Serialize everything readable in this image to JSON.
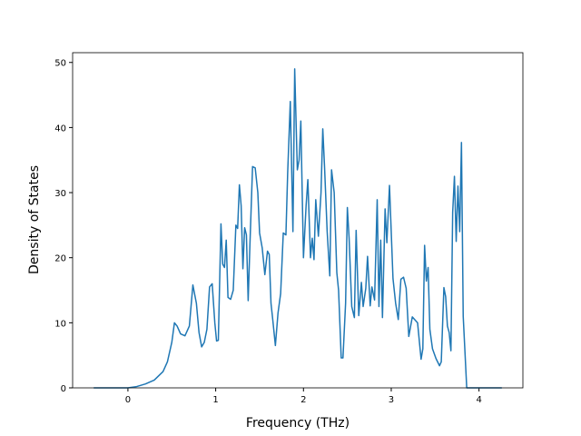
{
  "chart_data": {
    "type": "line",
    "x_label": "Frequency (THz)",
    "y_label": "Density of States",
    "xlim": [
      -0.63,
      4.5
    ],
    "ylim": [
      0,
      51.5
    ],
    "xticks": [
      0,
      1,
      2,
      3,
      4
    ],
    "yticks": [
      0,
      10,
      20,
      30,
      40,
      50
    ],
    "grid": false,
    "series": [
      {
        "color": "#1f77b4",
        "x": [
          -0.39,
          0,
          0.1,
          0.2,
          0.3,
          0.4,
          0.45,
          0.5,
          0.53,
          0.56,
          0.6,
          0.65,
          0.7,
          0.74,
          0.78,
          0.81,
          0.84,
          0.87,
          0.9,
          0.93,
          0.96,
          0.99,
          1.01,
          1.03,
          1.06,
          1.08,
          1.1,
          1.12,
          1.14,
          1.17,
          1.2,
          1.23,
          1.25,
          1.27,
          1.29,
          1.31,
          1.33,
          1.35,
          1.37,
          1.39,
          1.42,
          1.45,
          1.48,
          1.5,
          1.53,
          1.56,
          1.59,
          1.61,
          1.63,
          1.65,
          1.68,
          1.71,
          1.74,
          1.77,
          1.8,
          1.82,
          1.85,
          1.88,
          1.9,
          1.93,
          1.95,
          1.97,
          2.0,
          2.03,
          2.05,
          2.08,
          2.1,
          2.12,
          2.14,
          2.17,
          2.2,
          2.22,
          2.24,
          2.27,
          2.3,
          2.32,
          2.35,
          2.38,
          2.4,
          2.43,
          2.45,
          2.48,
          2.5,
          2.52,
          2.55,
          2.58,
          2.6,
          2.63,
          2.66,
          2.68,
          2.71,
          2.73,
          2.76,
          2.78,
          2.81,
          2.84,
          2.86,
          2.88,
          2.9,
          2.93,
          2.95,
          2.98,
          3.02,
          3.05,
          3.08,
          3.11,
          3.14,
          3.17,
          3.2,
          3.24,
          3.3,
          3.34,
          3.36,
          3.38,
          3.4,
          3.42,
          3.44,
          3.47,
          3.51,
          3.55,
          3.57,
          3.6,
          3.62,
          3.64,
          3.66,
          3.68,
          3.7,
          3.72,
          3.74,
          3.76,
          3.78,
          3.8,
          3.82,
          3.86,
          4.0,
          4.26
        ],
        "values": [
          0,
          0,
          0.2,
          0.6,
          1.2,
          2.5,
          4,
          7,
          10,
          9.5,
          8.3,
          8,
          9.5,
          15.8,
          13,
          8.5,
          6.3,
          7,
          9,
          15.5,
          16,
          10,
          7.2,
          7.3,
          25.2,
          19,
          18.5,
          22.7,
          13.9,
          13.6,
          15,
          25,
          24.5,
          31.2,
          28,
          18.3,
          24.6,
          23.5,
          13.4,
          22,
          34,
          33.8,
          30,
          23.8,
          21.5,
          17.4,
          21,
          20.5,
          13,
          10.5,
          6.5,
          11.5,
          14.5,
          23.8,
          23.5,
          33,
          44,
          24,
          49,
          33.5,
          35,
          41,
          20,
          28,
          32,
          20,
          23,
          19.7,
          28.9,
          23.3,
          30,
          39.8,
          34,
          24,
          17.2,
          33.5,
          30,
          17.7,
          15,
          4.6,
          4.6,
          13,
          27.7,
          23,
          12.5,
          10.8,
          24.2,
          11.1,
          16.2,
          12.5,
          15.3,
          20.2,
          12.6,
          15.5,
          13.5,
          28.9,
          12.5,
          22.7,
          10.8,
          27.5,
          22.3,
          31.1,
          16.8,
          13,
          10.5,
          16.7,
          17,
          15.3,
          7.9,
          10.9,
          10,
          4.4,
          6,
          21.9,
          16.4,
          18.5,
          9,
          6,
          4.5,
          3.4,
          4,
          15.4,
          14,
          9.5,
          8.5,
          5.7,
          27,
          32.5,
          22.5,
          31,
          24,
          37.7,
          11,
          0,
          0,
          0
        ]
      }
    ]
  }
}
